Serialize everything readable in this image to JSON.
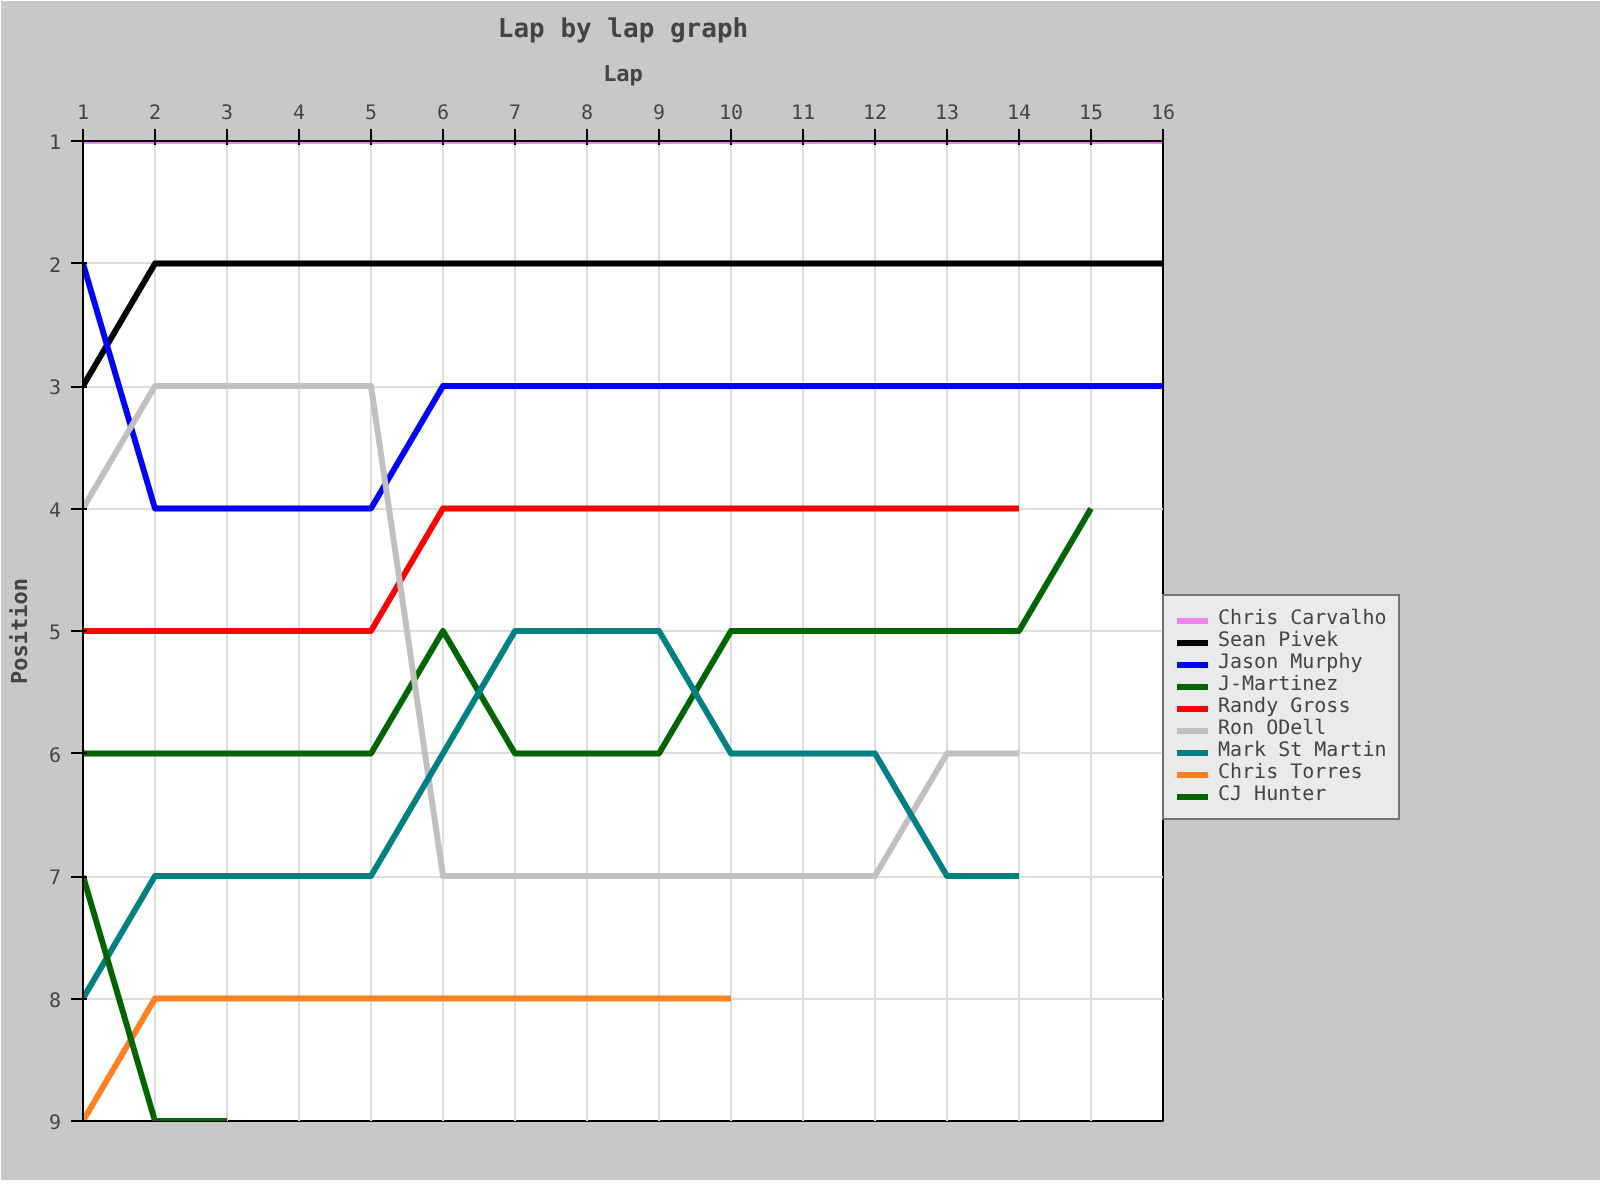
{
  "chart_data": {
    "type": "line",
    "title": "Lap by lap graph",
    "xlabel": "Lap",
    "ylabel": "Position",
    "xlim": [
      1,
      16
    ],
    "xticks": [
      1,
      2,
      3,
      4,
      5,
      6,
      7,
      8,
      9,
      10,
      11,
      12,
      13,
      14,
      15,
      16
    ],
    "ylim": [
      9,
      1
    ],
    "yticks": [
      1,
      2,
      3,
      4,
      5,
      6,
      7,
      8,
      9
    ],
    "grid": true,
    "legend": "right",
    "marker": "none",
    "line_style": "solid",
    "series": [
      {
        "name": "Chris Carvalho",
        "color": "#ee82ee",
        "x": [
          1,
          2,
          3,
          4,
          5,
          6,
          7,
          8,
          9,
          10,
          11,
          12,
          13,
          14,
          15,
          16
        ],
        "values": [
          1,
          1,
          1,
          1,
          1,
          1,
          1,
          1,
          1,
          1,
          1,
          1,
          1,
          1,
          1,
          1
        ]
      },
      {
        "name": "Sean Pivek",
        "color": "#000000",
        "x": [
          1,
          2,
          3,
          4,
          5,
          6,
          7,
          8,
          9,
          10,
          11,
          12,
          13,
          14,
          15,
          16
        ],
        "values": [
          3,
          2,
          2,
          2,
          2,
          2,
          2,
          2,
          2,
          2,
          2,
          2,
          2,
          2,
          2,
          2
        ]
      },
      {
        "name": "Jason Murphy",
        "color": "#0000ff",
        "x": [
          1,
          2,
          3,
          4,
          5,
          6,
          7,
          8,
          9,
          10,
          11,
          12,
          13,
          14,
          15,
          16
        ],
        "values": [
          2,
          4,
          4,
          4,
          4,
          3,
          3,
          3,
          3,
          3,
          3,
          3,
          3,
          3,
          3,
          3
        ]
      },
      {
        "name": "J-Martinez",
        "color": "#006400",
        "x": [
          1,
          2,
          3,
          4,
          5,
          6,
          7,
          8,
          9,
          10,
          11,
          12,
          13,
          14,
          15
        ],
        "values": [
          6,
          6,
          6,
          6,
          6,
          5,
          6,
          6,
          6,
          5,
          5,
          5,
          5,
          5,
          4
        ]
      },
      {
        "name": "Randy Gross",
        "color": "#ff0000",
        "x": [
          1,
          2,
          3,
          4,
          5,
          6,
          7,
          8,
          9,
          10,
          11,
          12,
          13,
          14
        ],
        "values": [
          5,
          5,
          5,
          5,
          5,
          4,
          4,
          4,
          4,
          4,
          4,
          4,
          4,
          4
        ]
      },
      {
        "name": "Ron ODell",
        "color": "#c0c0c0",
        "x": [
          1,
          2,
          3,
          4,
          5,
          6,
          7,
          8,
          9,
          10,
          11,
          12,
          13,
          14
        ],
        "values": [
          4,
          3,
          3,
          3,
          3,
          7,
          7,
          7,
          7,
          7,
          7,
          7,
          6,
          6
        ]
      },
      {
        "name": "Mark St Martin",
        "color": "#008080",
        "x": [
          1,
          2,
          3,
          4,
          5,
          6,
          7,
          8,
          9,
          10,
          11,
          12,
          13,
          14
        ],
        "values": [
          8,
          7,
          7,
          7,
          7,
          6,
          5,
          5,
          5,
          6,
          6,
          6,
          7,
          7
        ]
      },
      {
        "name": "Chris Torres",
        "color": "#ff8020",
        "x": [
          1,
          2,
          3,
          4,
          5,
          6,
          7,
          8,
          9,
          10
        ],
        "values": [
          9,
          8,
          8,
          8,
          8,
          8,
          8,
          8,
          8,
          8
        ]
      },
      {
        "name": "CJ Hunter",
        "color": "#006400",
        "x": [
          1,
          2,
          3
        ],
        "values": [
          7,
          9,
          9
        ]
      }
    ]
  }
}
